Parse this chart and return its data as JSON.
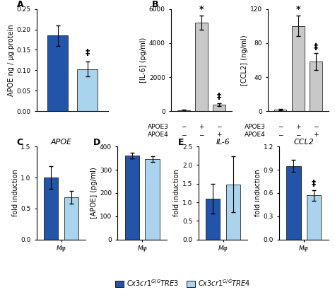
{
  "panel_A": {
    "ylabel": "APOE ng / μg protein",
    "bars": [
      {
        "value": 0.185,
        "err": 0.025,
        "color": "#2255aa"
      },
      {
        "value": 0.103,
        "err": 0.018,
        "color": "#aad4ee"
      }
    ],
    "ylim": [
      0,
      0.25
    ],
    "yticks": [
      0,
      0.05,
      0.1,
      0.15,
      0.2,
      0.25
    ],
    "sig_label": "‡",
    "sig_bar_idx": 1
  },
  "panel_B_IL6": {
    "ylabel": "[IL-6] (pg/ml)",
    "bars": [
      {
        "value": 50,
        "err": 30,
        "color": "#d8d8d8"
      },
      {
        "value": 5200,
        "err": 400,
        "color": "#c8c8c8"
      },
      {
        "value": 400,
        "err": 80,
        "color": "#c8c8c8"
      }
    ],
    "ylim": [
      0,
      6000
    ],
    "yticks": [
      0,
      2000,
      4000,
      6000
    ],
    "sig_bar1_idx": 1,
    "sig_bar1_label": "*",
    "sig_bar2_idx": 2,
    "sig_bar2_label": "‡"
  },
  "panel_B_CCL2": {
    "ylabel": "[CCL2] (ng/ml)",
    "bars": [
      {
        "value": 2,
        "err": 1,
        "color": "#d8d8d8"
      },
      {
        "value": 100,
        "err": 12,
        "color": "#c8c8c8"
      },
      {
        "value": 58,
        "err": 10,
        "color": "#c8c8c8"
      }
    ],
    "ylim": [
      0,
      120
    ],
    "yticks": [
      0,
      40,
      80,
      120
    ],
    "sig_bar1_idx": 1,
    "sig_bar1_label": "*",
    "sig_bar2_idx": 2,
    "sig_bar2_label": "‡"
  },
  "panel_C": {
    "title": "APOE",
    "ylabel": "fold induction",
    "xlabel": "Mφ",
    "bars": [
      {
        "value": 1.0,
        "err": 0.18,
        "color": "#2255aa"
      },
      {
        "value": 0.68,
        "err": 0.1,
        "color": "#aad4ee"
      }
    ],
    "ylim": [
      0,
      1.5
    ],
    "yticks": [
      0,
      0.5,
      1.0,
      1.5
    ]
  },
  "panel_D": {
    "title": "",
    "ylabel": "[APOE] (pg/ml)",
    "xlabel": "Mφ",
    "bars": [
      {
        "value": 360,
        "err": 12,
        "color": "#2255aa"
      },
      {
        "value": 345,
        "err": 12,
        "color": "#aad4ee"
      }
    ],
    "ylim": [
      0,
      400
    ],
    "yticks": [
      0,
      100,
      200,
      300,
      400
    ]
  },
  "panel_E_IL6": {
    "title": "IL-6",
    "ylabel": "fold induction",
    "xlabel": "Mφ",
    "bars": [
      {
        "value": 1.1,
        "err": 0.4,
        "color": "#2255aa"
      },
      {
        "value": 1.48,
        "err": 0.75,
        "color": "#aad4ee"
      }
    ],
    "ylim": [
      0,
      2.5
    ],
    "yticks": [
      0,
      0.5,
      1.0,
      1.5,
      2.0,
      2.5
    ]
  },
  "panel_E_CCL2": {
    "title": "CCL2",
    "ylabel": "fold induction",
    "xlabel": "Mφ",
    "bars": [
      {
        "value": 0.95,
        "err": 0.08,
        "color": "#2255aa"
      },
      {
        "value": 0.57,
        "err": 0.07,
        "color": "#aad4ee"
      }
    ],
    "ylim": [
      0,
      1.2
    ],
    "yticks": [
      0,
      0.3,
      0.6,
      0.9,
      1.2
    ],
    "sig_label": "‡",
    "sig_bar_idx": 1
  },
  "legend": {
    "TRE3_label": "$Cx3cr1^{G/G}TRE3$",
    "TRE4_label": "$Cx3cr1^{G/G}TRE4$",
    "TRE3_color": "#2255aa",
    "TRE4_color": "#aad4ee"
  },
  "row1": [
    "−",
    "+",
    "−"
  ],
  "row2": [
    "−",
    "−",
    "+"
  ],
  "xrow_labels": [
    "APOE3",
    "APOE4"
  ],
  "fontsize_axis": 7,
  "fontsize_tick": 6.5,
  "fontsize_panel": 9,
  "fontsize_sig": 9,
  "bar_width": 0.35
}
